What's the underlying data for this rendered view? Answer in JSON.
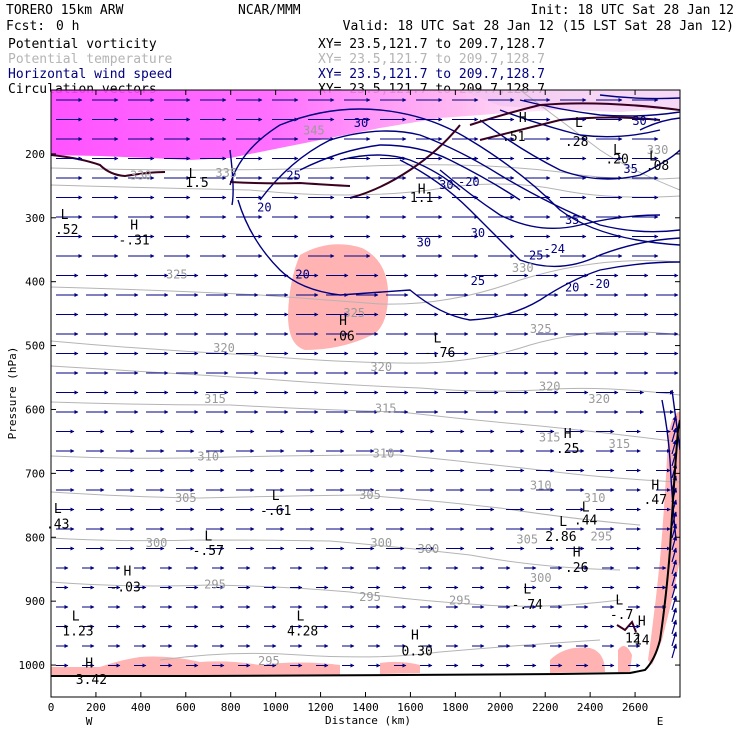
{
  "header": {
    "model": "TORERO  15km ARW",
    "center": "NCAR/MMM",
    "init": "Init: 18 UTC Sat 28 Jan 12",
    "fcst_label": "Fcst:",
    "fcst_value": "0 h",
    "valid": "Valid: 18 UTC Sat 28 Jan 12 (15 LST Sat 28 Jan 12)"
  },
  "legend": [
    {
      "name": "Potential vorticity",
      "color": "#000000",
      "xy": "XY=  23.5,121.7 to 209.7,128.7"
    },
    {
      "name": "Potential temperature",
      "color": "#b4b4b4",
      "xy": "XY=  23.5,121.7 to 209.7,128.7"
    },
    {
      "name": "Horizontal wind speed",
      "color": "#000080",
      "xy": "XY=  23.5,121.7 to 209.7,128.7"
    },
    {
      "name": "Circulation vectors",
      "color": "#000000",
      "xy": "XY=  23.5,121.7 to 209.7,128.7"
    }
  ],
  "chart_data": {
    "type": "cross-section",
    "xlabel": "Distance (km)",
    "ylabel": "Pressure (hPa)",
    "xlim": [
      0,
      2800
    ],
    "ylim": [
      1050,
      100
    ],
    "x_ticks": [
      0,
      200,
      400,
      600,
      800,
      1000,
      1200,
      1400,
      1600,
      1800,
      2000,
      2200,
      2400,
      2600
    ],
    "y_ticks": [
      200,
      300,
      400,
      500,
      600,
      700,
      800,
      900,
      1000
    ],
    "x_end_labels": {
      "left": "W",
      "right": "E"
    },
    "colors": {
      "pv_fill": "#ff40ff",
      "pv_fill_light": "#ffb3b3",
      "theta": "#b4b4b4",
      "wind": "#000080",
      "vectors": "#000080"
    },
    "theta_labels": [
      {
        "x": 1170,
        "p": 170,
        "t": "345"
      },
      {
        "x": 2700,
        "p": 200,
        "t": "330"
      },
      {
        "x": 780,
        "p": 236,
        "t": "335"
      },
      {
        "x": 400,
        "p": 240,
        "t": "330"
      },
      {
        "x": 2100,
        "p": 385,
        "t": "330"
      },
      {
        "x": 560,
        "p": 395,
        "t": "325"
      },
      {
        "x": 1350,
        "p": 455,
        "t": "325"
      },
      {
        "x": 2180,
        "p": 480,
        "t": "325"
      },
      {
        "x": 770,
        "p": 510,
        "t": "320"
      },
      {
        "x": 1470,
        "p": 540,
        "t": "320"
      },
      {
        "x": 2220,
        "p": 570,
        "t": "320"
      },
      {
        "x": 2440,
        "p": 590,
        "t": "320"
      },
      {
        "x": 730,
        "p": 590,
        "t": "315"
      },
      {
        "x": 1490,
        "p": 605,
        "t": "315"
      },
      {
        "x": 2220,
        "p": 650,
        "t": "315"
      },
      {
        "x": 2530,
        "p": 660,
        "t": "315"
      },
      {
        "x": 700,
        "p": 680,
        "t": "310"
      },
      {
        "x": 1480,
        "p": 675,
        "t": "310"
      },
      {
        "x": 2180,
        "p": 725,
        "t": "310"
      },
      {
        "x": 2420,
        "p": 745,
        "t": "310"
      },
      {
        "x": 600,
        "p": 745,
        "t": "305"
      },
      {
        "x": 1420,
        "p": 740,
        "t": "305"
      },
      {
        "x": 2120,
        "p": 810,
        "t": "305"
      },
      {
        "x": 470,
        "p": 815,
        "t": "300"
      },
      {
        "x": 1470,
        "p": 815,
        "t": "300"
      },
      {
        "x": 1680,
        "p": 825,
        "t": "300"
      },
      {
        "x": 2180,
        "p": 870,
        "t": "300"
      },
      {
        "x": 730,
        "p": 880,
        "t": "295"
      },
      {
        "x": 1420,
        "p": 900,
        "t": "295"
      },
      {
        "x": 1820,
        "p": 905,
        "t": "295"
      },
      {
        "x": 2450,
        "p": 805,
        "t": "295"
      },
      {
        "x": 970,
        "p": 1000,
        "t": "295"
      }
    ],
    "wind_labels": [
      {
        "x": 1380,
        "p": 158,
        "t": "30"
      },
      {
        "x": 2620,
        "p": 155,
        "t": "30"
      },
      {
        "x": 1080,
        "p": 240,
        "t": "25"
      },
      {
        "x": 1760,
        "p": 255,
        "t": "30"
      },
      {
        "x": 1860,
        "p": 250,
        "t": "-20"
      },
      {
        "x": 950,
        "p": 290,
        "t": "20"
      },
      {
        "x": 1900,
        "p": 330,
        "t": "30"
      },
      {
        "x": 1660,
        "p": 345,
        "t": "30"
      },
      {
        "x": 2160,
        "p": 365,
        "t": "25"
      },
      {
        "x": 2240,
        "p": 355,
        "t": "-24"
      },
      {
        "x": 2580,
        "p": 230,
        "t": "35"
      },
      {
        "x": 2320,
        "p": 310,
        "t": "35"
      },
      {
        "x": 1900,
        "p": 405,
        "t": "25"
      },
      {
        "x": 1120,
        "p": 395,
        "t": "20"
      },
      {
        "x": 2320,
        "p": 415,
        "t": "20"
      },
      {
        "x": 2440,
        "p": 410,
        "t": "-20"
      }
    ],
    "extrema": [
      {
        "x": 2350,
        "p": 158,
        "t": "L"
      },
      {
        "x": 2340,
        "p": 188,
        "t": ".28"
      },
      {
        "x": 2100,
        "p": 150,
        "t": "H"
      },
      {
        "x": 2060,
        "p": 180,
        "t": ".51"
      },
      {
        "x": 2520,
        "p": 200,
        "t": "L"
      },
      {
        "x": 2520,
        "p": 215,
        "t": ".20"
      },
      {
        "x": 2680,
        "p": 210,
        "t": "L"
      },
      {
        "x": 2700,
        "p": 225,
        "t": ".08"
      },
      {
        "x": 630,
        "p": 238,
        "t": "L"
      },
      {
        "x": 650,
        "p": 252,
        "t": "1.5"
      },
      {
        "x": 1650,
        "p": 262,
        "t": "H"
      },
      {
        "x": 1650,
        "p": 275,
        "t": "1.1"
      },
      {
        "x": 60,
        "p": 302,
        "t": "L"
      },
      {
        "x": 70,
        "p": 325,
        "t": ".52"
      },
      {
        "x": 370,
        "p": 318,
        "t": "H"
      },
      {
        "x": 370,
        "p": 342,
        "t": "-.31"
      },
      {
        "x": 1300,
        "p": 468,
        "t": "H"
      },
      {
        "x": 1300,
        "p": 492,
        "t": ".06"
      },
      {
        "x": 1720,
        "p": 495,
        "t": "L"
      },
      {
        "x": 1730,
        "p": 518,
        "t": "-.76"
      },
      {
        "x": 2300,
        "p": 645,
        "t": "H"
      },
      {
        "x": 2300,
        "p": 668,
        "t": ".25"
      },
      {
        "x": 2690,
        "p": 725,
        "t": "H"
      },
      {
        "x": 2690,
        "p": 748,
        "t": ".47"
      },
      {
        "x": 1000,
        "p": 742,
        "t": "L"
      },
      {
        "x": 1000,
        "p": 765,
        "t": "-.61"
      },
      {
        "x": 30,
        "p": 762,
        "t": "L"
      },
      {
        "x": 30,
        "p": 786,
        "t": ".43"
      },
      {
        "x": 2380,
        "p": 760,
        "t": "L"
      },
      {
        "x": 2380,
        "p": 780,
        "t": ".44"
      },
      {
        "x": 2280,
        "p": 782,
        "t": "L"
      },
      {
        "x": 2270,
        "p": 806,
        "t": "2.86"
      },
      {
        "x": 700,
        "p": 805,
        "t": "L"
      },
      {
        "x": 700,
        "p": 828,
        "t": "-.57"
      },
      {
        "x": 2340,
        "p": 830,
        "t": "H"
      },
      {
        "x": 2340,
        "p": 854,
        "t": ".26"
      },
      {
        "x": 340,
        "p": 860,
        "t": "H"
      },
      {
        "x": 330,
        "p": 885,
        "t": "-.03"
      },
      {
        "x": 2120,
        "p": 888,
        "t": "L"
      },
      {
        "x": 2120,
        "p": 912,
        "t": "-.74"
      },
      {
        "x": 2530,
        "p": 905,
        "t": "L"
      },
      {
        "x": 2540,
        "p": 928,
        "t": "-.7"
      },
      {
        "x": 110,
        "p": 930,
        "t": "L"
      },
      {
        "x": 120,
        "p": 954,
        "t": "1.23"
      },
      {
        "x": 1110,
        "p": 930,
        "t": "L"
      },
      {
        "x": 1120,
        "p": 954,
        "t": "4.28"
      },
      {
        "x": 2630,
        "p": 938,
        "t": "H"
      },
      {
        "x": 2590,
        "p": 965,
        "t": "12"
      },
      {
        "x": 2630,
        "p": 968,
        "t": "14"
      },
      {
        "x": 1620,
        "p": 960,
        "t": "H"
      },
      {
        "x": 1630,
        "p": 985,
        "t": "0.30"
      },
      {
        "x": 170,
        "p": 1004,
        "t": "H"
      },
      {
        "x": 180,
        "p": 1030,
        "t": "3.42"
      }
    ]
  }
}
